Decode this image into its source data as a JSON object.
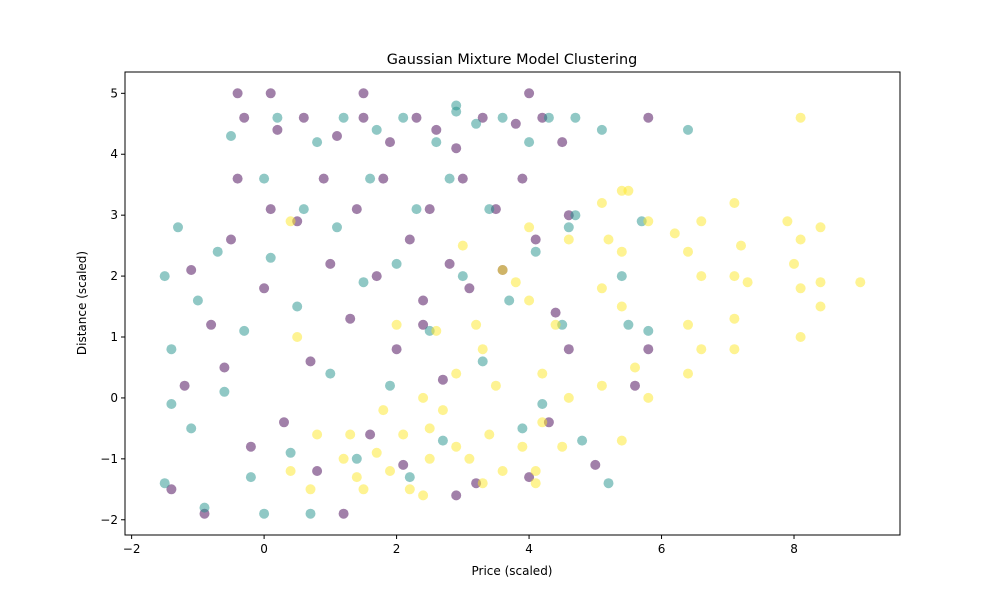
{
  "chart_data": {
    "type": "scatter",
    "title": "Gaussian Mixture Model Clustering",
    "xlabel": "Price (scaled)",
    "ylabel": "Distance (scaled)",
    "xlim": [
      -2.1,
      9.6
    ],
    "ylim": [
      -2.25,
      5.35
    ],
    "x_ticks": [
      -2,
      0,
      2,
      4,
      6,
      8
    ],
    "y_ticks": [
      -2,
      -1,
      0,
      1,
      2,
      3,
      4,
      5
    ],
    "x_tick_labels": [
      "−2",
      "0",
      "2",
      "4",
      "6",
      "8"
    ],
    "y_tick_labels": [
      "−2",
      "−1",
      "0",
      "1",
      "2",
      "3",
      "4",
      "5"
    ],
    "grid": false,
    "legend": "none",
    "colors": {
      "cluster_purple": "#440154",
      "cluster_teal": "#21918c",
      "cluster_yellow": "#fde725"
    },
    "series": [
      {
        "color": "#440154",
        "points": [
          [
            -1.4,
            -1.5
          ],
          [
            -1.2,
            0.2
          ],
          [
            -1.1,
            2.1
          ],
          [
            -0.9,
            -1.9
          ],
          [
            -0.8,
            1.2
          ],
          [
            -0.6,
            0.5
          ],
          [
            -0.5,
            2.6
          ],
          [
            -0.4,
            3.6
          ],
          [
            -0.3,
            4.6
          ],
          [
            -0.2,
            -0.8
          ],
          [
            0.0,
            1.8
          ],
          [
            0.1,
            3.1
          ],
          [
            0.2,
            4.4
          ],
          [
            0.3,
            -0.4
          ],
          [
            0.5,
            2.9
          ],
          [
            0.6,
            4.6
          ],
          [
            0.7,
            0.6
          ],
          [
            0.8,
            -1.2
          ],
          [
            0.9,
            3.6
          ],
          [
            1.0,
            2.2
          ],
          [
            1.1,
            4.3
          ],
          [
            1.2,
            -1.9
          ],
          [
            1.3,
            1.3
          ],
          [
            1.4,
            3.1
          ],
          [
            1.5,
            4.6
          ],
          [
            1.6,
            -0.6
          ],
          [
            1.7,
            2.0
          ],
          [
            1.8,
            3.6
          ],
          [
            1.9,
            4.2
          ],
          [
            2.0,
            0.8
          ],
          [
            2.1,
            -1.1
          ],
          [
            2.2,
            2.6
          ],
          [
            2.3,
            4.6
          ],
          [
            2.4,
            1.6
          ],
          [
            2.5,
            3.1
          ],
          [
            2.6,
            4.4
          ],
          [
            2.7,
            0.3
          ],
          [
            2.8,
            2.2
          ],
          [
            2.9,
            4.1
          ],
          [
            3.0,
            3.6
          ],
          [
            3.1,
            1.8
          ],
          [
            3.2,
            -1.4
          ],
          [
            3.3,
            4.6
          ],
          [
            3.5,
            3.1
          ],
          [
            3.6,
            2.1
          ],
          [
            3.8,
            4.5
          ],
          [
            3.9,
            3.6
          ],
          [
            4.0,
            -1.3
          ],
          [
            4.1,
            2.6
          ],
          [
            4.2,
            4.6
          ],
          [
            4.3,
            -0.4
          ],
          [
            4.5,
            4.2
          ],
          [
            4.6,
            3.0
          ],
          [
            4.4,
            1.4
          ],
          [
            4.6,
            0.8
          ],
          [
            5.0,
            -1.1
          ],
          [
            5.6,
            0.2
          ],
          [
            5.8,
            4.6
          ],
          [
            5.8,
            0.8
          ],
          [
            4.0,
            5.0
          ],
          [
            1.5,
            5.0
          ],
          [
            -0.4,
            5.0
          ],
          [
            0.1,
            5.0
          ],
          [
            2.4,
            1.2
          ],
          [
            2.9,
            -1.6
          ]
        ]
      },
      {
        "color": "#21918c",
        "points": [
          [
            -1.5,
            -1.4
          ],
          [
            -1.4,
            0.8
          ],
          [
            -1.3,
            2.8
          ],
          [
            -1.1,
            -0.5
          ],
          [
            -1.0,
            1.6
          ],
          [
            -0.9,
            -1.8
          ],
          [
            -0.7,
            2.4
          ],
          [
            -0.6,
            0.1
          ],
          [
            -0.5,
            4.3
          ],
          [
            -0.3,
            1.1
          ],
          [
            -0.2,
            -1.3
          ],
          [
            0.0,
            3.6
          ],
          [
            0.1,
            2.3
          ],
          [
            0.2,
            4.6
          ],
          [
            0.4,
            -0.9
          ],
          [
            0.5,
            1.5
          ],
          [
            0.6,
            3.1
          ],
          [
            0.7,
            -1.9
          ],
          [
            0.8,
            4.2
          ],
          [
            1.0,
            0.4
          ],
          [
            1.1,
            2.8
          ],
          [
            1.2,
            4.6
          ],
          [
            1.4,
            -1.0
          ],
          [
            1.5,
            1.9
          ],
          [
            1.6,
            3.6
          ],
          [
            1.7,
            4.4
          ],
          [
            1.9,
            0.2
          ],
          [
            2.0,
            2.2
          ],
          [
            2.1,
            4.6
          ],
          [
            2.2,
            -1.3
          ],
          [
            2.3,
            3.1
          ],
          [
            2.5,
            1.1
          ],
          [
            2.6,
            4.2
          ],
          [
            2.7,
            -0.7
          ],
          [
            2.8,
            3.6
          ],
          [
            2.9,
            4.7
          ],
          [
            3.0,
            2.0
          ],
          [
            3.2,
            4.5
          ],
          [
            3.3,
            0.6
          ],
          [
            3.4,
            3.1
          ],
          [
            3.6,
            4.6
          ],
          [
            3.7,
            1.6
          ],
          [
            3.9,
            -0.5
          ],
          [
            4.0,
            4.2
          ],
          [
            4.1,
            2.4
          ],
          [
            4.3,
            4.6
          ],
          [
            4.5,
            1.2
          ],
          [
            4.7,
            4.6
          ],
          [
            4.6,
            2.8
          ],
          [
            5.1,
            4.4
          ],
          [
            5.2,
            -1.4
          ],
          [
            5.4,
            2.0
          ],
          [
            5.5,
            1.2
          ],
          [
            5.7,
            2.9
          ],
          [
            5.8,
            1.1
          ],
          [
            6.4,
            4.4
          ],
          [
            4.8,
            -0.7
          ],
          [
            4.2,
            -0.1
          ],
          [
            2.9,
            4.8
          ],
          [
            0.0,
            -1.9
          ],
          [
            -1.5,
            2.0
          ],
          [
            -1.4,
            -0.1
          ],
          [
            4.7,
            3.0
          ]
        ]
      },
      {
        "color": "#fde725",
        "points": [
          [
            0.4,
            2.9
          ],
          [
            0.4,
            -1.2
          ],
          [
            0.5,
            1.0
          ],
          [
            0.7,
            -1.5
          ],
          [
            0.8,
            -0.6
          ],
          [
            1.2,
            -1.0
          ],
          [
            1.3,
            -0.6
          ],
          [
            1.4,
            -1.3
          ],
          [
            1.5,
            -1.5
          ],
          [
            1.7,
            -0.9
          ],
          [
            1.8,
            -0.2
          ],
          [
            1.9,
            -1.2
          ],
          [
            2.0,
            1.2
          ],
          [
            2.1,
            -0.6
          ],
          [
            2.2,
            -1.5
          ],
          [
            2.4,
            0.0
          ],
          [
            2.5,
            -0.5
          ],
          [
            2.5,
            -1.0
          ],
          [
            2.6,
            1.1
          ],
          [
            2.7,
            -0.2
          ],
          [
            2.9,
            0.4
          ],
          [
            2.9,
            -0.8
          ],
          [
            3.0,
            2.5
          ],
          [
            3.1,
            -1.0
          ],
          [
            3.2,
            1.2
          ],
          [
            3.3,
            -1.4
          ],
          [
            3.3,
            0.8
          ],
          [
            3.4,
            -0.6
          ],
          [
            3.5,
            0.2
          ],
          [
            3.6,
            2.1
          ],
          [
            3.6,
            -1.2
          ],
          [
            3.8,
            1.9
          ],
          [
            3.9,
            -0.8
          ],
          [
            4.0,
            1.6
          ],
          [
            4.0,
            2.8
          ],
          [
            4.1,
            -1.4
          ],
          [
            4.2,
            0.4
          ],
          [
            4.2,
            -0.4
          ],
          [
            4.4,
            1.2
          ],
          [
            4.5,
            -0.8
          ],
          [
            4.6,
            2.6
          ],
          [
            4.6,
            0.0
          ],
          [
            5.1,
            1.8
          ],
          [
            5.1,
            3.2
          ],
          [
            5.2,
            2.6
          ],
          [
            5.1,
            0.2
          ],
          [
            5.4,
            1.5
          ],
          [
            5.4,
            -0.7
          ],
          [
            5.5,
            3.4
          ],
          [
            5.4,
            2.4
          ],
          [
            5.6,
            0.5
          ],
          [
            5.8,
            2.9
          ],
          [
            5.8,
            0.0
          ],
          [
            6.2,
            2.7
          ],
          [
            6.4,
            2.4
          ],
          [
            6.4,
            1.2
          ],
          [
            6.4,
            0.4
          ],
          [
            6.6,
            2.0
          ],
          [
            6.6,
            0.8
          ],
          [
            6.6,
            2.9
          ],
          [
            7.1,
            2.0
          ],
          [
            7.1,
            1.3
          ],
          [
            7.1,
            3.2
          ],
          [
            7.1,
            0.8
          ],
          [
            7.2,
            2.5
          ],
          [
            7.3,
            1.9
          ],
          [
            7.9,
            2.9
          ],
          [
            8.0,
            2.2
          ],
          [
            8.1,
            1.0
          ],
          [
            8.1,
            2.6
          ],
          [
            8.1,
            4.6
          ],
          [
            8.1,
            1.8
          ],
          [
            8.4,
            2.8
          ],
          [
            8.4,
            1.5
          ],
          [
            8.4,
            1.9
          ],
          [
            9.0,
            1.9
          ],
          [
            5.4,
            3.4
          ],
          [
            4.1,
            -1.2
          ],
          [
            2.4,
            -1.6
          ]
        ]
      }
    ]
  }
}
